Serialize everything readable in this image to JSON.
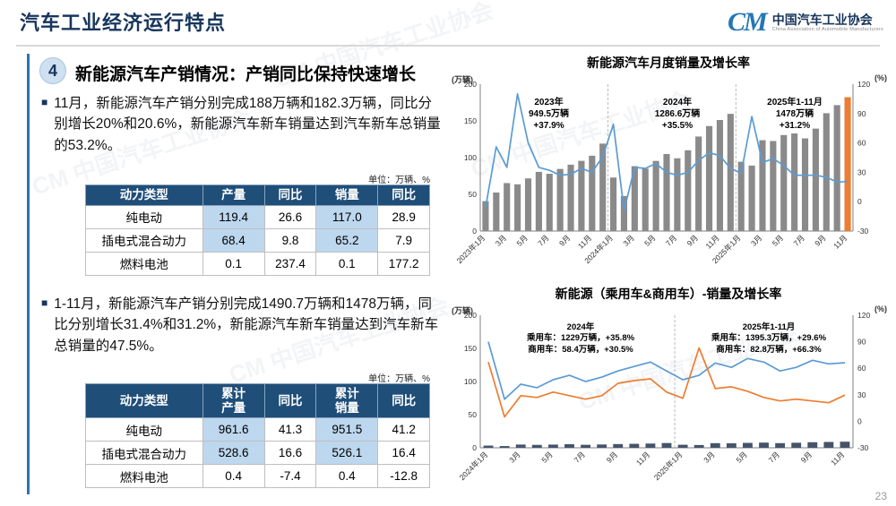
{
  "header": {
    "title": "汽车工业经济运行特点",
    "logo": {
      "mark": "CM",
      "org": "中国汽车工业协会",
      "sub": "China Association of Automobile Manufacturers"
    }
  },
  "section": {
    "badge": "4",
    "title": "新能源汽车产销情况：",
    "subtitle": "产销同比保持快速增长"
  },
  "bullets": [
    "11月，新能源汽车产销分别完成188万辆和182.3万辆，同比分别增长20%和20.6%，新能源汽车新车销量达到汽车新车总销量的53.2%。",
    "1-11月，新能源汽车产销分别完成1490.7万辆和1478万辆，同比分别增长31.4%和31.2%，新能源汽车新车销量达到汽车新车总销量的47.5%。"
  ],
  "tables": [
    {
      "unit": "单位：万辆、%",
      "headers": [
        "动力类型",
        "产量",
        "同比",
        "销量",
        "同比"
      ],
      "rows": [
        {
          "label": "纯电动",
          "cells": [
            "119.4",
            "26.6",
            "117.0",
            "28.9"
          ],
          "hl": [
            true,
            false,
            true,
            false
          ]
        },
        {
          "label": "插电式混合动力",
          "cells": [
            "68.4",
            "9.8",
            "65.2",
            "7.9"
          ],
          "hl": [
            true,
            false,
            true,
            false
          ]
        },
        {
          "label": "燃料电池",
          "cells": [
            "0.1",
            "237.4",
            "0.1",
            "177.2"
          ],
          "hl": [
            false,
            false,
            false,
            false
          ]
        }
      ]
    },
    {
      "unit": "单位：万辆、%",
      "headers": [
        "动力类型",
        "累计\n产量",
        "同比",
        "累计\n销量",
        "同比"
      ],
      "rows": [
        {
          "label": "纯电动",
          "cells": [
            "961.6",
            "41.3",
            "951.5",
            "41.2"
          ],
          "hl": [
            true,
            false,
            true,
            false
          ]
        },
        {
          "label": "插电式混合动力",
          "cells": [
            "528.6",
            "16.6",
            "526.1",
            "16.4"
          ],
          "hl": [
            true,
            false,
            true,
            false
          ]
        },
        {
          "label": "燃料电池",
          "cells": [
            "0.4",
            "-7.4",
            "0.4",
            "-12.8"
          ],
          "hl": [
            false,
            false,
            false,
            false
          ]
        }
      ]
    }
  ],
  "chart_data": [
    {
      "type": "bar",
      "title": "新能源汽车月度销量及增长率",
      "left_axis": {
        "label": "(万辆)",
        "min": 0,
        "max": 200,
        "ticks": [
          0,
          50,
          100,
          150,
          200
        ]
      },
      "right_axis": {
        "label": "(%)",
        "min": -30,
        "max": 120,
        "ticks": [
          -30,
          0,
          30,
          60,
          90,
          120
        ]
      },
      "x_tick_step": 2,
      "x_tick_labels": [
        "2023年1月",
        "3月",
        "5月",
        "7月",
        "9月",
        "11月",
        "2024年1月",
        "3月",
        "5月",
        "7月",
        "9月",
        "11月",
        "2025年1月",
        "3月",
        "5月",
        "7月",
        "9月",
        "11月"
      ],
      "year_separators": [
        12,
        24
      ],
      "bar_series": {
        "name": "月度销量",
        "color": "#8A8A8A",
        "last_color": "#ED7D31",
        "values": [
          40.8,
          52.5,
          65.3,
          63.6,
          71.7,
          80.6,
          78.0,
          84.6,
          90.4,
          95.6,
          102.6,
          119.1,
          72.9,
          47.7,
          88.3,
          85.0,
          95.5,
          104.9,
          99.1,
          110.0,
          128.7,
          143.0,
          151.2,
          159.6,
          94.4,
          89.2,
          123.7,
          122.6,
          130.7,
          132.9,
          126.2,
          139.5,
          160.5,
          171.5,
          182.3
        ]
      },
      "lines": [
        {
          "name": "同比增长率",
          "color": "#5B9BD5",
          "values": [
            -6,
            56,
            35,
            110,
            60,
            35,
            32,
            27,
            28,
            34,
            30,
            46,
            79,
            -9,
            35,
            34,
            39,
            30,
            27,
            30,
            42,
            50,
            47,
            34,
            29,
            87,
            40,
            44,
            37,
            27,
            27,
            27,
            25,
            20,
            20.6
          ]
        }
      ],
      "annotations": [
        {
          "l1": "2023年",
          "l2": "949.5万辆",
          "l3": "+37.9%"
        },
        {
          "l1": "2024年",
          "l2": "1286.6万辆",
          "l3": "+35.5%"
        },
        {
          "l1": "2025年1-11月",
          "l2": "1478万辆",
          "l3": "+31.2%"
        }
      ]
    },
    {
      "type": "bar",
      "title": "新能源（乘用车&商用车）-销量及增长率",
      "left_axis": {
        "label": "(万辆)",
        "min": 0,
        "max": 200,
        "ticks": [
          0,
          50,
          100,
          150,
          200
        ]
      },
      "right_axis": {
        "label": "(%)",
        "min": -30,
        "max": 120,
        "ticks": [
          -30,
          0,
          30,
          60,
          90,
          120
        ]
      },
      "x_tick_step": 2,
      "x_tick_labels": [
        "2024年1月",
        "3月",
        "5月",
        "7月",
        "9月",
        "11月",
        "2025年1月",
        "3月",
        "5月",
        "7月",
        "9月",
        "11月"
      ],
      "year_separators": [
        12
      ],
      "bar_series": {
        "name": "商用车月度销量",
        "color": "#44546A",
        "values": [
          3.3,
          2.6,
          4.9,
          4.4,
          4.8,
          5.4,
          4.5,
          5.0,
          5.6,
          6.0,
          6.4,
          7.2,
          4.6,
          4.2,
          7.0,
          6.8,
          7.4,
          7.8,
          7.0,
          7.6,
          8.4,
          8.8,
          9.2
        ]
      },
      "lines": [
        {
          "name": "商用车增长率",
          "color": "#5B9BD5",
          "values": [
            90,
            25,
            42,
            38,
            47,
            52,
            45,
            50,
            57,
            62,
            67,
            57,
            47,
            52,
            66,
            61,
            71,
            67,
            57,
            61,
            69,
            65,
            66.3
          ]
        },
        {
          "name": "乘用车增长率",
          "color": "#ED7D31",
          "values": [
            67,
            5,
            29,
            27,
            33,
            29,
            25,
            29,
            43,
            46,
            48,
            33,
            26,
            83,
            37,
            39,
            34,
            27,
            23,
            25,
            23,
            21,
            29.6
          ]
        }
      ],
      "annotations": [
        {
          "l1": "2024年",
          "l2": "乘用车：1229万辆，+35.8%",
          "l3": "商用车：58.4万辆，+30.5%"
        },
        {
          "l1": "2025年1-11月",
          "l2": "乘用车：1395.3万辆，+29.6%",
          "l3": "商用车：82.8万辆，+66.3%"
        }
      ]
    }
  ],
  "watermark": {
    "text": "CM 中国汽车工业协会"
  },
  "footer": {
    "page_number": "23"
  },
  "colors": {
    "accent_blue": "#2E74B5",
    "navy": "#17365D",
    "table_header_bg": "#1F4E79",
    "highlight_cell": "#BDD7EE",
    "bar_gray": "#8A8A8A",
    "bar_orange": "#ED7D31",
    "line_blue": "#5B9BD5",
    "line_orange": "#ED7D31",
    "bar_navy": "#44546A"
  }
}
